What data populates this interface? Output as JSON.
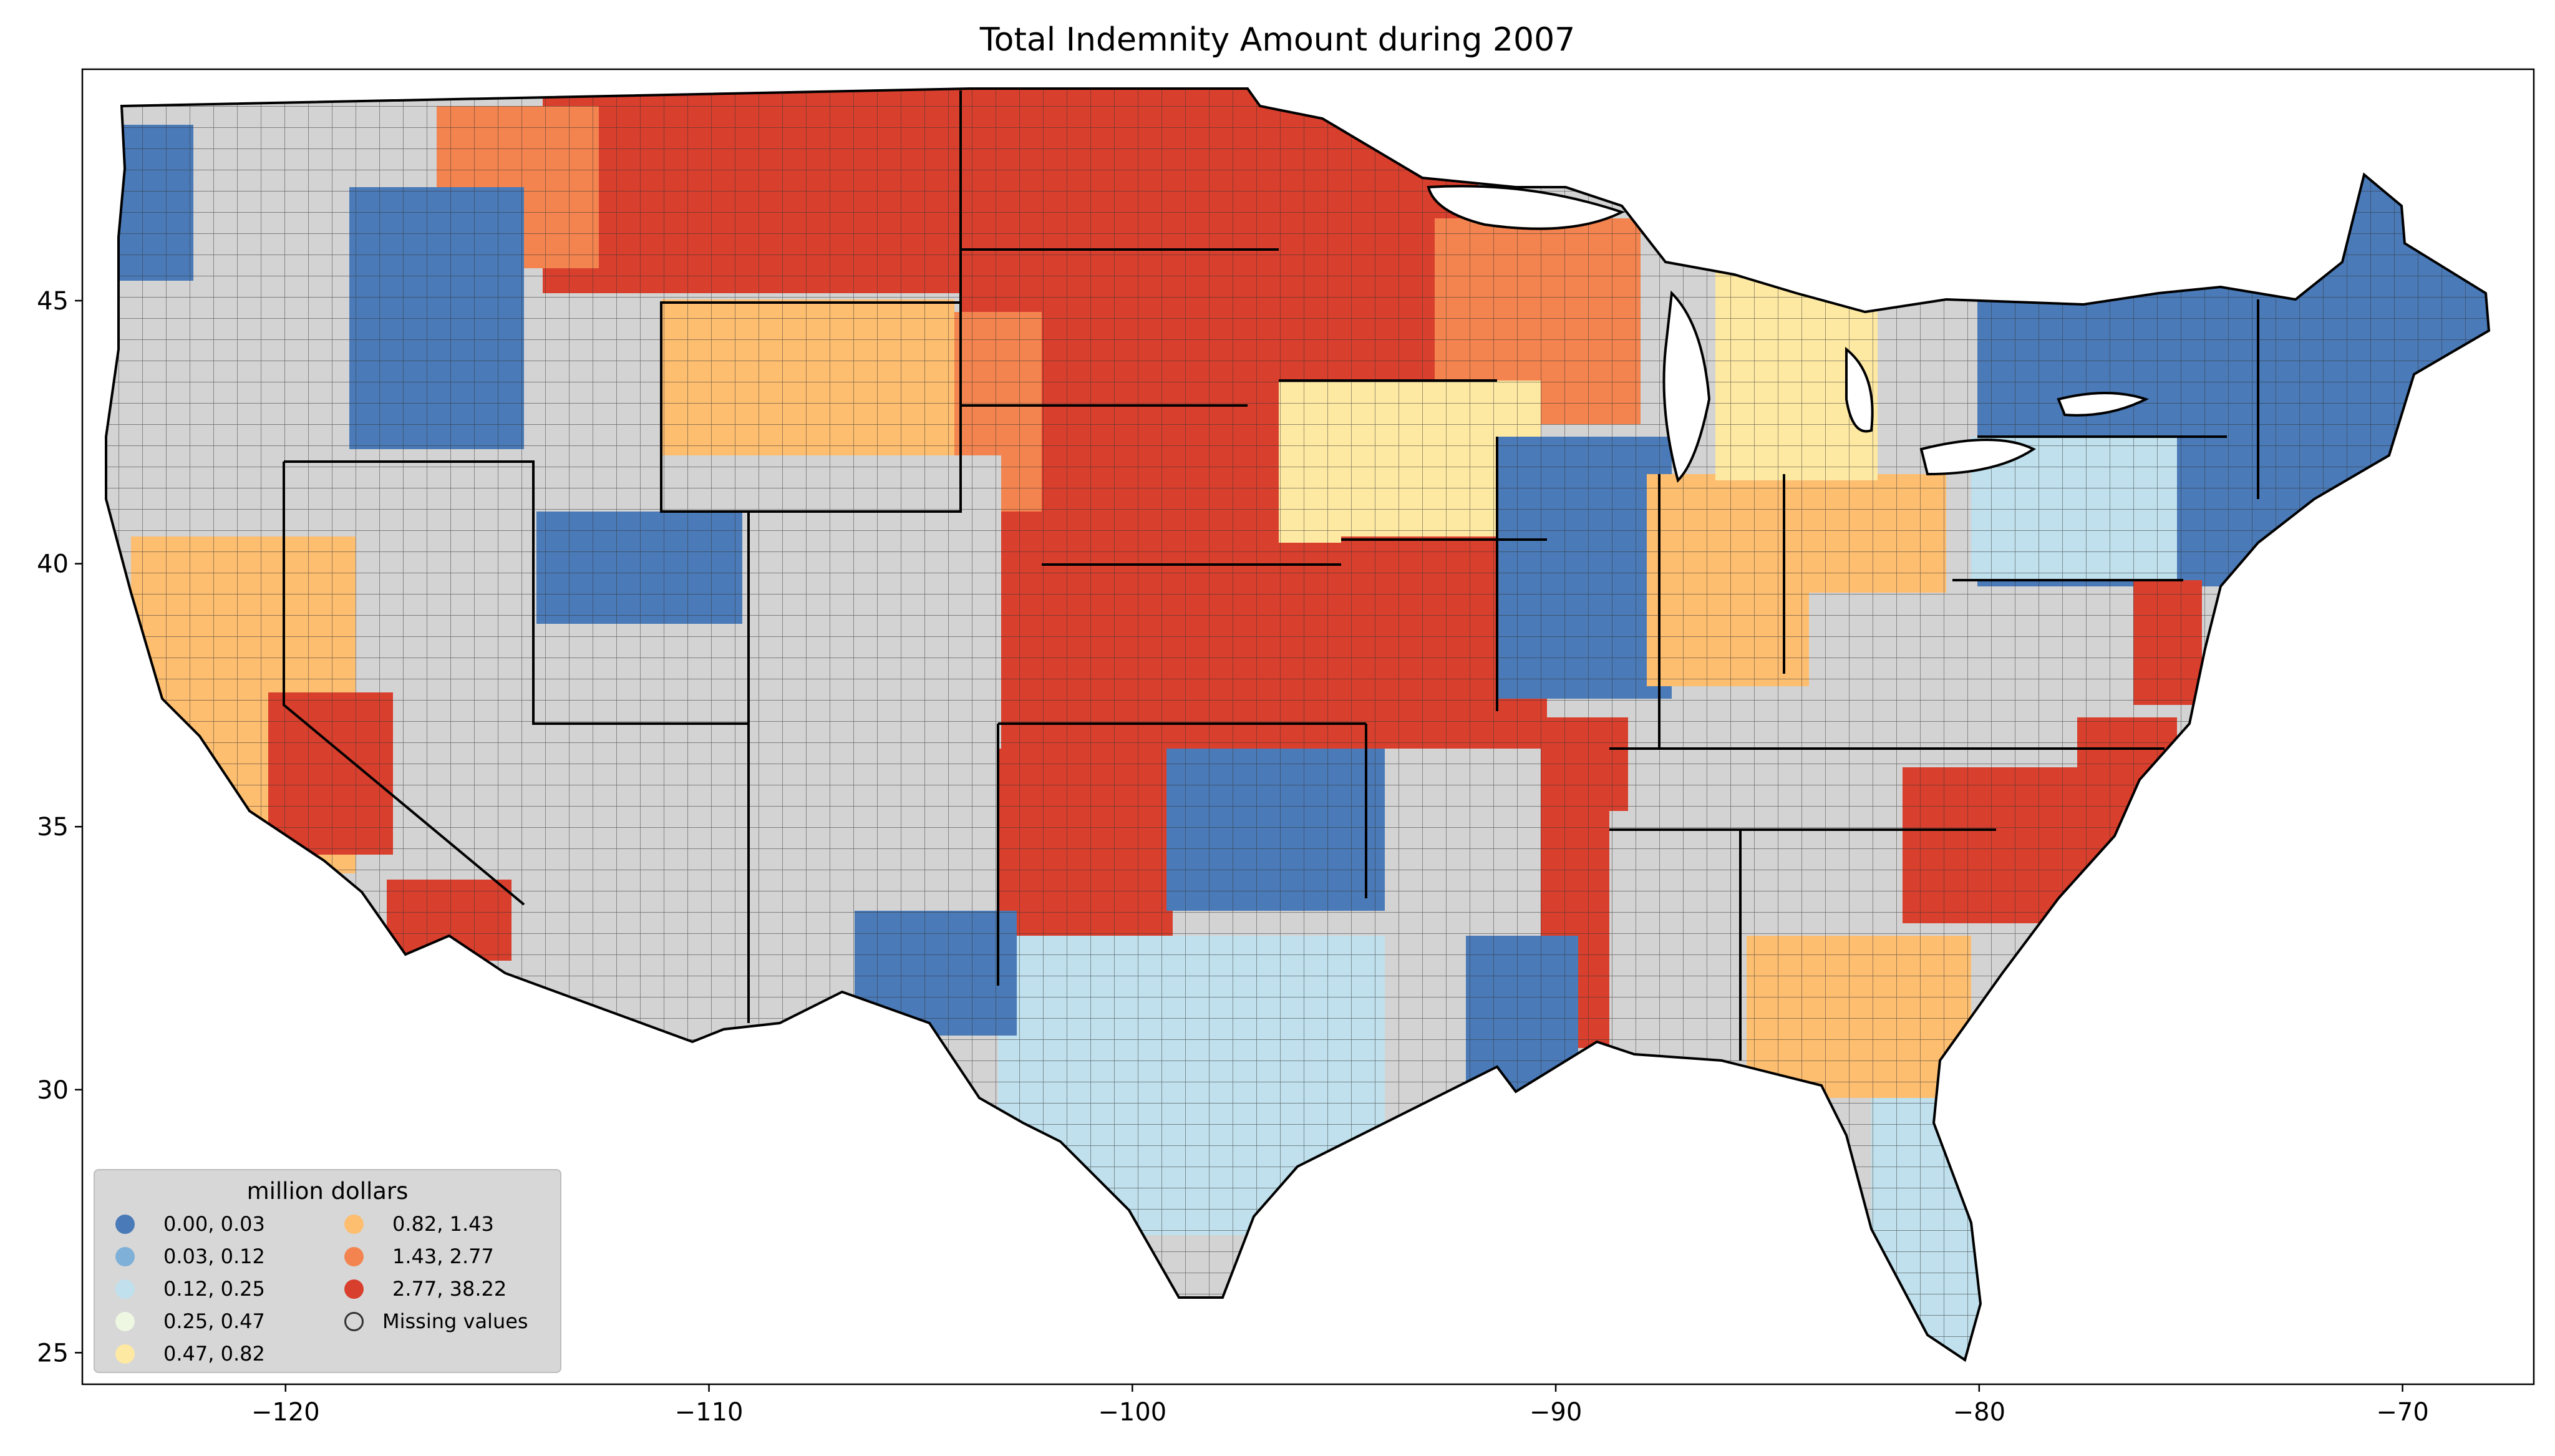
{
  "title": "Total Indemnity Amount during 2007",
  "legend": {
    "title": "million dollars",
    "items": [
      {
        "label": "0.00,  0.03",
        "color": "#4a7ab8"
      },
      {
        "label": "0.03,  0.12",
        "color": "#7fb0d7"
      },
      {
        "label": "0.12,  0.25",
        "color": "#bfe0ec"
      },
      {
        "label": "0.25,  0.47",
        "color": "#eef7e2"
      },
      {
        "label": "0.47,  0.82",
        "color": "#fee9a3"
      },
      {
        "label": "0.82,  1.43",
        "color": "#fdbe70"
      },
      {
        "label": "1.43,  2.77",
        "color": "#f4844f"
      },
      {
        "label": "2.77, 38.22",
        "color": "#d93f2d"
      },
      {
        "label": "Missing values",
        "color": "#d3d3d3"
      }
    ]
  },
  "axes": {
    "x_ticks": [
      "−120",
      "−110",
      "−100",
      "−90",
      "−80",
      "−70"
    ],
    "y_ticks": [
      "45",
      "40",
      "35",
      "30",
      "25"
    ],
    "x_tick_values": [
      -120,
      -110,
      -100,
      -90,
      -80,
      -70
    ],
    "y_tick_values": [
      45,
      40,
      35,
      30,
      25
    ],
    "xlim": [
      -124.8,
      -66.9
    ],
    "ylim": [
      24.4,
      49.4
    ]
  }
}
